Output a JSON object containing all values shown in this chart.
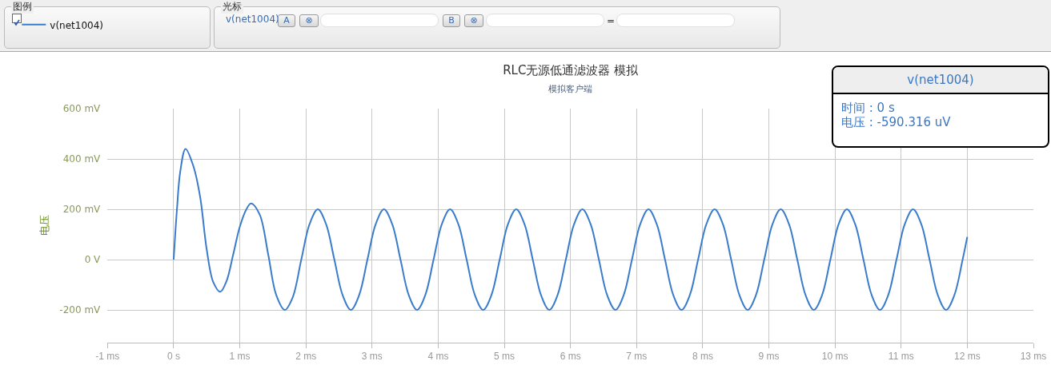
{
  "chart_data": {
    "type": "line",
    "title": "RLC无源低通滤波器 模拟",
    "subtitle": "模拟客户端",
    "ylabel": "电压",
    "x": [
      0,
      0.05,
      0.1,
      0.18,
      0.3,
      0.4,
      0.5,
      0.6,
      0.705,
      0.8,
      0.9,
      1.0,
      1.1,
      1.17,
      1.3,
      1.43,
      1.55,
      1.68,
      1.8,
      1.93,
      2.055,
      2.18,
      2.305,
      2.43,
      2.555,
      2.68,
      2.805,
      2.93,
      3.055,
      3.18,
      3.305,
      3.43,
      3.555,
      3.68,
      3.805,
      3.93,
      4.055,
      4.18,
      4.305,
      4.43,
      4.555,
      4.68,
      4.805,
      4.93,
      5.055,
      5.18,
      5.305,
      5.43,
      5.555,
      5.68,
      5.805,
      5.93,
      6.055,
      6.18,
      6.305,
      6.43,
      6.555,
      6.68,
      6.805,
      6.93,
      7.055,
      7.18,
      7.305,
      7.43,
      7.555,
      7.68,
      7.805,
      7.93,
      8.055,
      8.18,
      8.305,
      8.43,
      8.555,
      8.68,
      8.805,
      8.93,
      9.055,
      9.18,
      9.305,
      9.43,
      9.555,
      9.68,
      9.805,
      9.93,
      10.055,
      10.18,
      10.305,
      10.43,
      10.555,
      10.68,
      10.805,
      10.93,
      11.055,
      11.18,
      11.305,
      11.43,
      11.555,
      11.68,
      11.805,
      11.93,
      12.0
    ],
    "series": [
      {
        "name": "v(net1004)",
        "color": "#3a7ccc",
        "values": [
          0,
          200,
          350,
          440,
          370,
          250,
          40,
          -90,
          -128,
          -85,
          20,
          130,
          200,
          223,
          180,
          20,
          -140,
          -200,
          -150,
          0,
          141,
          200,
          141,
          0,
          -141,
          -200,
          -141,
          0,
          141,
          200,
          141,
          0,
          -141,
          -200,
          -141,
          0,
          141,
          200,
          141,
          0,
          -141,
          -200,
          -141,
          0,
          141,
          200,
          141,
          0,
          -141,
          -200,
          -141,
          0,
          141,
          200,
          141,
          0,
          -141,
          -200,
          -141,
          0,
          141,
          200,
          141,
          0,
          -141,
          -200,
          -141,
          0,
          141,
          200,
          141,
          0,
          -141,
          -200,
          -141,
          0,
          141,
          200,
          141,
          0,
          -141,
          -200,
          -141,
          0,
          141,
          200,
          141,
          0,
          -141,
          -200,
          -141,
          0,
          141,
          200,
          141,
          0,
          -141,
          -200,
          -141,
          0,
          90
        ]
      }
    ],
    "xlim": [
      -1,
      13
    ],
    "xticks": [
      {
        "value": -1,
        "label": "-1 ms"
      },
      {
        "value": 0,
        "label": "0 s"
      },
      {
        "value": 1,
        "label": "1 ms"
      },
      {
        "value": 2,
        "label": "2 ms"
      },
      {
        "value": 3,
        "label": "3 ms"
      },
      {
        "value": 4,
        "label": "4 ms"
      },
      {
        "value": 5,
        "label": "5 ms"
      },
      {
        "value": 6,
        "label": "6 ms"
      },
      {
        "value": 7,
        "label": "7 ms"
      },
      {
        "value": 8,
        "label": "8 ms"
      },
      {
        "value": 9,
        "label": "9 ms"
      },
      {
        "value": 10,
        "label": "10 ms"
      },
      {
        "value": 11,
        "label": "11 ms"
      },
      {
        "value": 12,
        "label": "12 ms"
      },
      {
        "value": 13,
        "label": "13 ms"
      }
    ],
    "ylim": [
      -330,
      600
    ],
    "yticks": [
      {
        "value": -200,
        "label": "-200 mV"
      },
      {
        "value": 0,
        "label": "0 V"
      },
      {
        "value": 200,
        "label": "200 mV"
      },
      {
        "value": 400,
        "label": "400 mV"
      },
      {
        "value": 600,
        "label": "600 mV"
      }
    ],
    "grid": true,
    "legend": "top left",
    "marker": "none",
    "line_style": "solid",
    "annotations": [
      "图例",
      "光标",
      "v(net1004)",
      "A",
      "⊗",
      "B",
      "⊗",
      "=",
      "v(net1004)",
      "时间 : 0 s",
      "电压 : -590.316 uV"
    ]
  }
}
